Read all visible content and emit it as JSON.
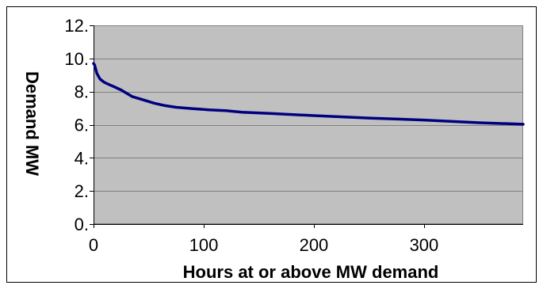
{
  "chart_data": {
    "type": "line",
    "title": "",
    "xlabel": "Hours at or above MW demand",
    "ylabel": "Demand MW",
    "xlim": [
      0,
      390
    ],
    "ylim": [
      0,
      12
    ],
    "x_ticks": [
      {
        "value": 0,
        "label": "0"
      },
      {
        "value": 100,
        "label": "100"
      },
      {
        "value": 200,
        "label": "200"
      },
      {
        "value": 300,
        "label": "300"
      }
    ],
    "y_ticks": [
      {
        "value": 0,
        "label": "0."
      },
      {
        "value": 2,
        "label": "2."
      },
      {
        "value": 4,
        "label": "4."
      },
      {
        "value": 6,
        "label": "6."
      },
      {
        "value": 8,
        "label": "8."
      },
      {
        "value": 10,
        "label": "10."
      },
      {
        "value": 12,
        "label": "12."
      }
    ],
    "grid": "horizontal",
    "legend": "none",
    "series": [
      {
        "color": "#000080",
        "points": [
          [
            0,
            9.7
          ],
          [
            1,
            9.6
          ],
          [
            3,
            9.1
          ],
          [
            6,
            8.75
          ],
          [
            10,
            8.55
          ],
          [
            15,
            8.4
          ],
          [
            20,
            8.25
          ],
          [
            25,
            8.1
          ],
          [
            30,
            7.9
          ],
          [
            35,
            7.7
          ],
          [
            45,
            7.5
          ],
          [
            55,
            7.3
          ],
          [
            65,
            7.15
          ],
          [
            75,
            7.05
          ],
          [
            90,
            6.97
          ],
          [
            105,
            6.9
          ],
          [
            120,
            6.85
          ],
          [
            135,
            6.75
          ],
          [
            160,
            6.68
          ],
          [
            200,
            6.55
          ],
          [
            250,
            6.4
          ],
          [
            300,
            6.28
          ],
          [
            350,
            6.12
          ],
          [
            390,
            6.03
          ]
        ]
      }
    ],
    "colors": {
      "plot_background": "#c0c0c0",
      "gridline": "#808080",
      "line": "#000080",
      "frame": "#000000"
    }
  }
}
